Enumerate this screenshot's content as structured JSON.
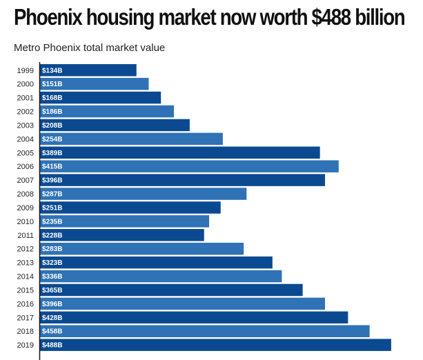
{
  "title": "Phoenix housing market now worth $488 billion",
  "subtitle": "Metro Phoenix total market value",
  "colors": {
    "dark": "#0b4a91",
    "light": "#2f72b5",
    "axis": "#111111"
  },
  "chart_data": {
    "type": "bar",
    "orientation": "horizontal",
    "title": "Phoenix housing market now worth $488 billion",
    "subtitle": "Metro Phoenix total market value",
    "categories": [
      "1999",
      "2000",
      "2001",
      "2002",
      "2003",
      "2004",
      "2005",
      "2006",
      "2007",
      "2008",
      "2009",
      "2010",
      "2011",
      "2012",
      "2013",
      "2014",
      "2015",
      "2016",
      "2017",
      "2018",
      "2019"
    ],
    "values": [
      134,
      151,
      168,
      186,
      208,
      254,
      389,
      415,
      396,
      287,
      251,
      235,
      228,
      283,
      323,
      336,
      365,
      396,
      428,
      458,
      488
    ],
    "value_labels": [
      "$134B",
      "$151B",
      "$168B",
      "$186B",
      "$208B",
      "$254B",
      "$389B",
      "$415B",
      "$396B",
      "$287B",
      "$251B",
      "$235B",
      "$228B",
      "$283B",
      "$323B",
      "$336B",
      "$365B",
      "$396B",
      "$428B",
      "$458B",
      "$488B"
    ],
    "xlim": [
      0,
      490
    ],
    "grid": false,
    "legend": "none"
  }
}
